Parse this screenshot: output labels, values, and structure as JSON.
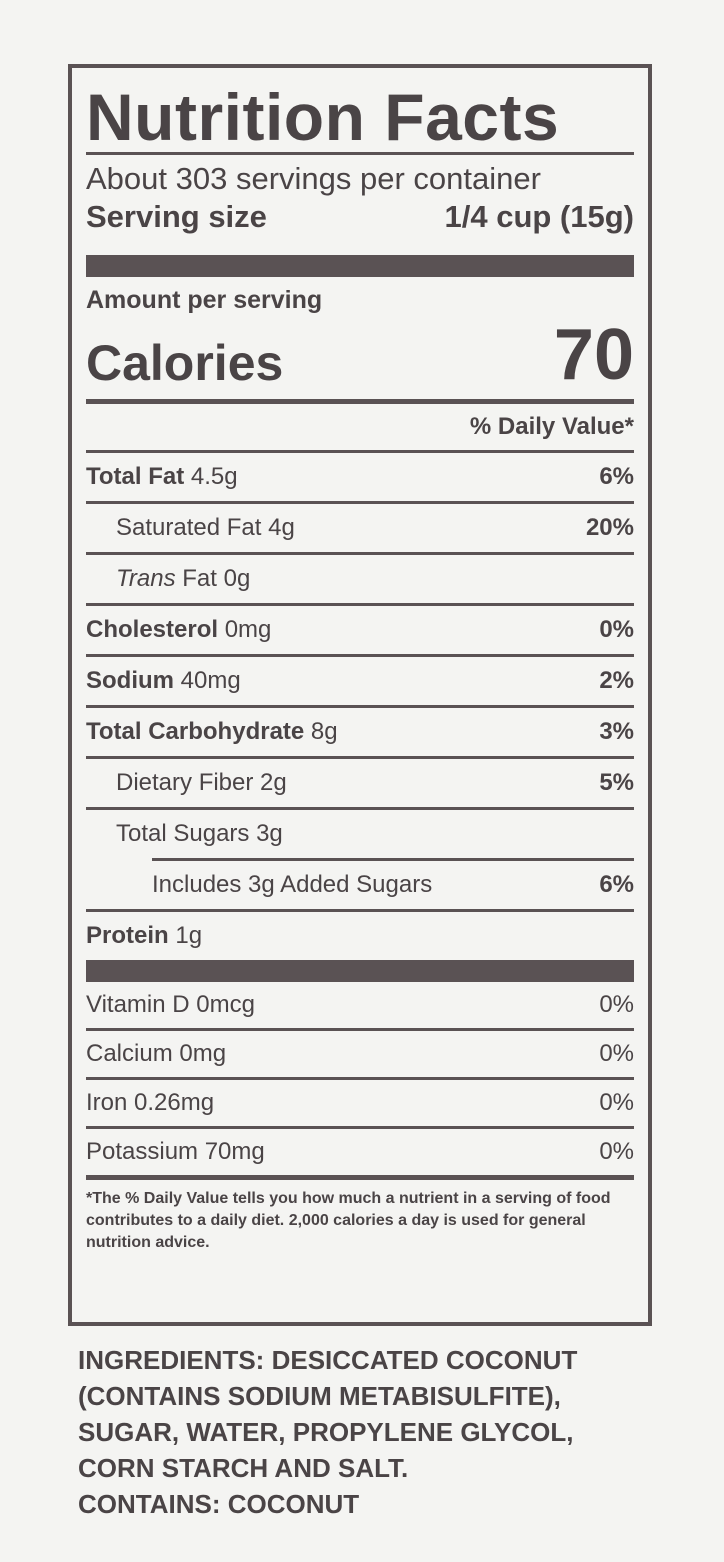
{
  "label": {
    "title": "Nutrition Facts",
    "servings_per_container": "About 303 servings per container",
    "serving_size_label": "Serving size",
    "serving_size_value": "1/4 cup (15g)",
    "amount_per_serving": "Amount per serving",
    "calories_label": "Calories",
    "calories_value": "70",
    "daily_value_header": "% Daily Value*",
    "nutrients": [
      {
        "name": "Total Fat",
        "amount": "4.5g",
        "dv": "6%"
      },
      {
        "name": "Saturated Fat",
        "amount": "4g",
        "dv": "20%"
      },
      {
        "name": "Trans",
        "name2": "Fat",
        "amount": "0g",
        "dv": ""
      },
      {
        "name": "Cholesterol",
        "amount": "0mg",
        "dv": "0%"
      },
      {
        "name": "Sodium",
        "amount": "40mg",
        "dv": "2%"
      },
      {
        "name": "Total Carbohydrate",
        "amount": "8g",
        "dv": "3%"
      },
      {
        "name": "Dietary Fiber",
        "amount": "2g",
        "dv": "5%"
      },
      {
        "name": "Total Sugars",
        "amount": "3g",
        "dv": ""
      },
      {
        "name": "Includes 3g Added Sugars",
        "amount": "",
        "dv": "6%"
      },
      {
        "name": "Protein",
        "amount": "1g",
        "dv": ""
      }
    ],
    "vitamins": [
      {
        "name": "Vitamin D 0mcg",
        "dv": "0%"
      },
      {
        "name": "Calcium 0mg",
        "dv": "0%"
      },
      {
        "name": "Iron 0.26mg",
        "dv": "0%"
      },
      {
        "name": "Potassium 70mg",
        "dv": "0%"
      }
    ],
    "footnote": "*The % Daily Value tells you how much a nutrient in a serving of food contributes to a daily diet. 2,000 calories a day is used for general nutrition advice."
  },
  "ingredients": {
    "heading": "INGREDIENTS:",
    "text": "DESICCATED COCONUT (CONTAINS SODIUM METABISULFITE), SUGAR, WATER, PROPYLENE GLYCOL, CORN STARCH AND SALT.",
    "contains_heading": "CONTAINS:",
    "contains_text": "COCONUT"
  }
}
